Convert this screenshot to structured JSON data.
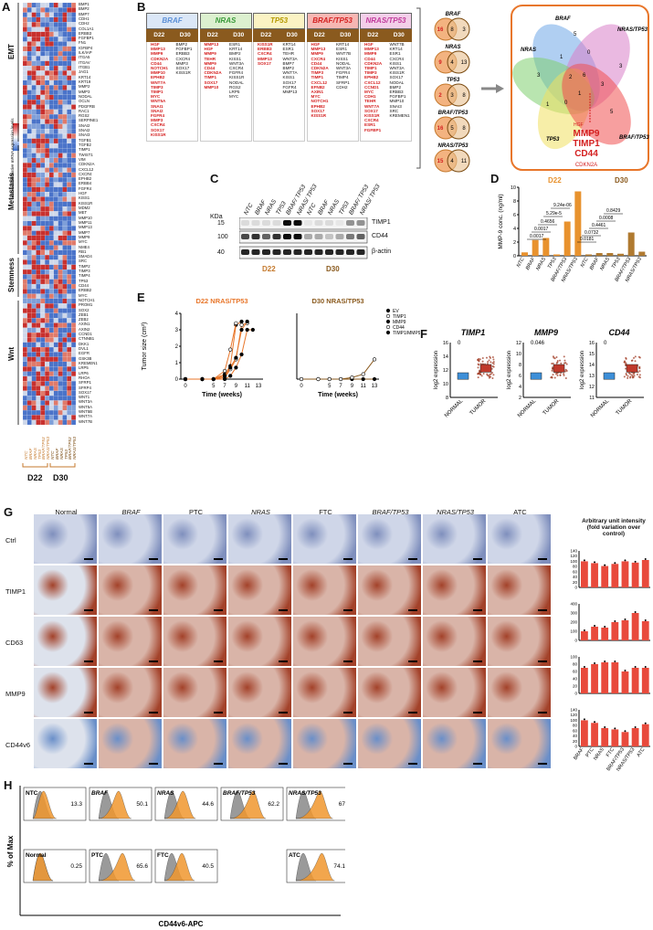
{
  "panels": {
    "A": "A",
    "B": "B",
    "C": "C",
    "D": "D",
    "E": "E",
    "F": "F",
    "G": "G",
    "H": "H"
  },
  "panelA": {
    "legend_title": "Normalized relative mRNA expression levels",
    "legend_ticks": [
      "2",
      "1",
      "0",
      "-1",
      "-2"
    ],
    "categories": [
      "EMT",
      "Metastasis",
      "Stemness",
      "Wnt"
    ],
    "genes": [
      "BMP1",
      "BMP2",
      "BMP7",
      "CDH1",
      "CDH2",
      "COL1A1",
      "ERBB3",
      "FGFBP1",
      "FN1",
      "IGFBP4",
      "ILK/IAP",
      "ITGA5",
      "ITGAV",
      "ITGB1",
      "JAG1",
      "KRT14",
      "KRT19",
      "MMP2",
      "MMP3",
      "NODAL",
      "OCLN",
      "PDGFRB",
      "RAC1",
      "RGS2",
      "SERPINE1",
      "SNAI2",
      "SNAI2",
      "SNAI3",
      "TGFB1",
      "TGFB2",
      "TIMP1",
      "TWIST1",
      "VIM",
      "CDKN2A",
      "CXCL12",
      "CXCR4",
      "EPHB2",
      "ERBB4",
      "FGFR4",
      "HGF",
      "KISS1",
      "KISS1R",
      "MDM2",
      "MET",
      "MMP10",
      "MMP11",
      "MMP13",
      "MMP7",
      "MMP9",
      "MYC",
      "NME4",
      "RB1",
      "SMAD4",
      "SRC",
      "TIMP2",
      "TIMP3",
      "TIMP4",
      "TP53",
      "CD44",
      "ERBB2",
      "MYC",
      "NOTCH1",
      "PROM1",
      "SOX2",
      "ZEB1",
      "ZEB2",
      "AXIN1",
      "AXIN2",
      "CCND1",
      "CTNNB1",
      "DKK1",
      "DVL1",
      "EGFR",
      "GSK3B",
      "KREMEN1",
      "LRP5",
      "LRP6",
      "RHOA",
      "SFRP1",
      "SFRP4",
      "SOX17",
      "WNT1",
      "WNT3A",
      "WNT5A",
      "WNT5B",
      "WNT7A",
      "WNT7B"
    ],
    "columns": [
      "NTC",
      "BRAF",
      "NRAS",
      "TP53",
      "BRAF/TP53",
      "NRAS/TP53",
      "NTC",
      "BRAF",
      "NRAS",
      "TP53",
      "BRAF/TP53",
      "NRAS/TP53"
    ],
    "groups": [
      "D22",
      "D30"
    ]
  },
  "panelB": {
    "cols": [
      {
        "name": "BRAF",
        "color": "#5b8fd6",
        "bg": "#dbe7f7",
        "d22": [
          "HGF",
          "MMP13",
          "MMP9",
          "CDKN2A",
          "CD44",
          "NOTCH1",
          "MMP10",
          "EPHB2",
          "WNT7A",
          "TIMP3",
          "TIMP1",
          "MYC",
          "WNT5A",
          "SNAI1",
          "SNAI2",
          "FGFR4",
          "MMP3",
          "CXCR4",
          "SOX17",
          "KISS1R"
        ],
        "d30": [
          "BMP2",
          "FGFBP1",
          "ERBB3",
          "CXCR4",
          "MMP3",
          "SOX17",
          "KISS1R"
        ]
      },
      {
        "name": "NRAS",
        "color": "#3a9a3a",
        "bg": "#dcf0cf",
        "d22": [
          "MMP13",
          "HGF",
          "MMP9",
          "TEHR",
          "MMP9",
          "CD44",
          "CDKN2A",
          "TIMP1",
          "SOX17",
          "MMP10"
        ],
        "d30": [
          "ESR1",
          "KRT14",
          "BMP2",
          "KISS1",
          "WNT3A",
          "CXCR4",
          "FGFR4",
          "KISS1R",
          "NODAL",
          "RGS2",
          "LRP5",
          "MYC"
        ]
      },
      {
        "name": "TP53",
        "color": "#b59a00",
        "bg": "#fbf3c4",
        "d22": [
          "KISS1R",
          "ERBB3",
          "CXCR4",
          "MMP13",
          "SOX17"
        ],
        "d30": [
          "KRT14",
          "ESR1",
          "TEHR",
          "WNT3A",
          "BMP7",
          "BMP2",
          "WNT7A",
          "KISS1",
          "SOX17",
          "FGFR4",
          "MMP13"
        ]
      },
      {
        "name": "BRAF/TP53",
        "color": "#d42020",
        "bg": "#f6b7b3",
        "d22": [
          "HGF",
          "MMP13",
          "MMP9",
          "CXCR4",
          "CD44",
          "CDKN2A",
          "TIMP3",
          "TIMP1",
          "CXCL12",
          "EFNB2",
          "AXIN1",
          "MYC",
          "NOTCH1",
          "EPHB2",
          "SOX17",
          "KISS1R"
        ],
        "d30": [
          "KRT14",
          "ESR1",
          "WNT7B",
          "KISS1",
          "NODAL",
          "WNT3A",
          "FGFR4",
          "TIMP4",
          "SFRP1",
          "CDH2"
        ]
      },
      {
        "name": "NRAS/TP53",
        "color": "#c03a9b",
        "bg": "#f3cfe9",
        "d22": [
          "HGF",
          "MMP13",
          "MMP9",
          "CD44",
          "CDKN2A",
          "TIMP1",
          "TIMP3",
          "EPHB2",
          "CXCL12",
          "CCND1",
          "MYC",
          "CDH1",
          "TEHR",
          "WNT7A",
          "SOX17",
          "KISS1R",
          "CXCR4",
          "ESR1",
          "FGFBP1"
        ],
        "d30": [
          "WNT7B",
          "KRT14",
          "ESR1",
          "CXCR4",
          "KISS1",
          "WNT3A",
          "KISS1R",
          "SOX17",
          "NODAL",
          "BMP2",
          "ERBB3",
          "FGFBP1",
          "MMP10",
          "SNAI3",
          "SRC",
          "KREMEN1"
        ]
      }
    ],
    "subheads": [
      "D22",
      "D30"
    ],
    "venn_small": [
      {
        "name": "BRAF",
        "a": "16",
        "b": "8",
        "c": "3"
      },
      {
        "name": "NRAS",
        "a": "9",
        "b": "4",
        "c": "13"
      },
      {
        "name": "TP53",
        "a": "2",
        "b": "3",
        "c": "8"
      },
      {
        "name": "BRAF/TP53",
        "a": "16",
        "b": "5",
        "c": "8"
      },
      {
        "name": "NRAS/TP53",
        "a": "15",
        "b": "4",
        "c": "11"
      }
    ],
    "venn_big": {
      "labels": [
        "BRAF",
        "NRAS/TP53",
        "NRAS",
        "TP53",
        "BRAF/TP53"
      ],
      "numbers": [
        "5",
        "3",
        "3",
        "1",
        "0",
        "2",
        "6",
        "3",
        "1",
        "0",
        "1",
        "5"
      ],
      "highlight": [
        "MMP9",
        "TIMP1",
        "CD44"
      ],
      "sub": [
        "HGF",
        "CDKN2A"
      ]
    }
  },
  "panelC": {
    "kda_label": "KDa",
    "kda": [
      "15",
      "100",
      "40"
    ],
    "lanes": [
      "NTC",
      "BRAF",
      "NRAS",
      "TP53",
      "BRAF/ TP53",
      "NRAS/ TP53",
      "NTC",
      "BRAF",
      "NRAS",
      "TP53",
      "BRAF/ TP53",
      "NRAS/ TP53"
    ],
    "bands": [
      "TIMP1",
      "CD44",
      "β-actin"
    ],
    "groups": [
      "D22",
      "D30"
    ]
  },
  "panelD": {
    "ylabel": "MMP-9 conc. (ng/ml)",
    "groups": [
      "D22",
      "D30"
    ],
    "categories": [
      "NTC",
      "BRAF",
      "NRAS",
      "TP53",
      "BRAF/TP53",
      "NRAS/TP53",
      "NTC",
      "BRAF",
      "NRAS",
      "TP53",
      "BRAF/TP53",
      "NRAS/TP53"
    ],
    "yticks": [
      "0",
      "2",
      "4",
      "6",
      "8",
      "10"
    ],
    "pvals": [
      "0.0017",
      "0.0017",
      "0.4656",
      "5.29e-5",
      "9.24e-06",
      "0.0181",
      "0.0732",
      "0.4461",
      "0.0008",
      "0.8429"
    ]
  },
  "panelE": {
    "ylabel": "Tumor size (cm³)",
    "xlabel": "Time (weeks)",
    "titles": [
      "D22 NRAS/TP53",
      "D30 NRAS/TP53"
    ],
    "xticks": [
      "0",
      "5",
      "7",
      "9",
      "11",
      "13"
    ],
    "yticks": [
      "0",
      "1",
      "2",
      "3",
      "4"
    ],
    "legend": [
      "EV",
      "TIMP1",
      "MMP9",
      "CD44",
      "TIMP1/MMP9/CD44"
    ]
  },
  "panelF": {
    "genes": [
      "TIMP1",
      "MMP9",
      "CD44"
    ],
    "ylabel": "log2 expression",
    "xcats": [
      "NORMAL",
      "TUMOR"
    ],
    "pvals": [
      "0",
      "0.046",
      "0"
    ],
    "yticks": [
      [
        "8",
        "10",
        "12",
        "14",
        "16"
      ],
      [
        "2",
        "4",
        "6",
        "8",
        "10",
        "12"
      ],
      [
        "11",
        "12",
        "13",
        "14",
        "15",
        "16"
      ]
    ]
  },
  "panelG": {
    "cols": [
      "Normal",
      "BRAF",
      "PTC",
      "NRAS",
      "FTC",
      "BRAF/TP53",
      "NRAS/TP53",
      "ATC"
    ],
    "rows": [
      "Ctrl",
      "TIMP1",
      "CD63",
      "MMP9",
      "CD44v6"
    ],
    "chart_title": "Arbitrary unit intensity (fold variation over control)",
    "xcats": [
      "BRAF",
      "PTC",
      "NRAS",
      "FTC",
      "BRAF/TP53",
      "NRAS/TP53",
      "ATC"
    ],
    "yticks": [
      [
        "0",
        "20",
        "40",
        "60",
        "80",
        "100",
        "120",
        "140"
      ],
      [
        "0",
        "100",
        "200",
        "300",
        "400"
      ],
      [
        "0",
        "20",
        "40",
        "60",
        "80",
        "100"
      ],
      [
        "0",
        "20",
        "40",
        "60",
        "80",
        "100",
        "120",
        "140"
      ]
    ]
  },
  "panelH": {
    "ylabel": "% of Max",
    "xlabel": "CD44v6-APC",
    "row1": [
      {
        "name": "NTC",
        "pct": "13.3"
      },
      {
        "name": "BRAF",
        "pct": "50.1"
      },
      {
        "name": "NRAS",
        "pct": "44.6"
      },
      {
        "name": "BRAF/TP53",
        "pct": "62.2"
      },
      {
        "name": "NRAS/TP53",
        "pct": "67"
      }
    ],
    "row2": [
      {
        "name": "Normal",
        "pct": "0.25"
      },
      {
        "name": "PTC",
        "pct": "65.6"
      },
      {
        "name": "FTC",
        "pct": "40.5"
      },
      {
        "name": "ATC",
        "pct": "74.1"
      }
    ]
  },
  "chart_data": [
    {
      "type": "bar",
      "title": "",
      "ylabel": "MMP-9 conc. (ng/ml)",
      "categories": [
        "NTC",
        "BRAF",
        "NRAS",
        "TP53",
        "BRAF/TP53",
        "NRAS/TP53",
        "NTC",
        "BRAF",
        "NRAS",
        "TP53",
        "BRAF/TP53",
        "NRAS/TP53"
      ],
      "values": [
        0.5,
        2.3,
        2.6,
        0.2,
        5.0,
        9.4,
        0.2,
        0.4,
        0.4,
        0.3,
        3.4,
        0.6
      ],
      "ylim": [
        0,
        10
      ]
    },
    {
      "type": "line",
      "title": "D22 NRAS/TP53",
      "xlabel": "Time (weeks)",
      "ylabel": "Tumor size (cm³)",
      "x": [
        0,
        3,
        5,
        7,
        8,
        9,
        10,
        11,
        12,
        13
      ],
      "series": [
        {
          "name": "EV",
          "values": [
            0,
            0,
            0,
            0.3,
            0.8,
            3.3,
            3.5,
            null,
            null,
            null
          ]
        },
        {
          "name": "TIMP1",
          "values": [
            0,
            0,
            0,
            0.1,
            0.6,
            1.2,
            3.3,
            3.4,
            null,
            null
          ]
        },
        {
          "name": "MMP9",
          "values": [
            0,
            0,
            0,
            0.2,
            0.7,
            1.3,
            3.0,
            3.5,
            null,
            null
          ]
        },
        {
          "name": "CD44",
          "values": [
            0,
            0,
            0,
            0.5,
            1.8,
            3.4,
            null,
            null,
            null,
            null
          ]
        },
        {
          "name": "TIMP1/MMP9/CD44",
          "values": [
            0,
            0,
            0,
            0,
            0.2,
            0.7,
            1.5,
            3.0,
            3.0,
            null
          ]
        }
      ],
      "ylim": [
        0,
        4
      ]
    },
    {
      "type": "line",
      "title": "D30 NRAS/TP53",
      "xlabel": "Time (weeks)",
      "ylabel": "",
      "x": [
        0,
        3,
        5,
        7,
        9,
        11,
        13
      ],
      "series": [
        {
          "name": "EV",
          "values": [
            0,
            0,
            0,
            0,
            0,
            0,
            0
          ]
        },
        {
          "name": "TIMP1/MMP9/CD44",
          "values": [
            0,
            0,
            0,
            0,
            0.1,
            0.3,
            1.2
          ]
        }
      ],
      "ylim": [
        0,
        4
      ]
    },
    {
      "type": "bar",
      "title": "TIMP1 IHC",
      "categories": [
        "BRAF",
        "PTC",
        "NRAS",
        "FTC",
        "BRAF/TP53",
        "NRAS/TP53",
        "ATC"
      ],
      "values": [
        100,
        93,
        82,
        90,
        100,
        95,
        105
      ],
      "ylim": [
        0,
        140
      ]
    },
    {
      "type": "bar",
      "title": "CD63 IHC",
      "categories": [
        "BRAF",
        "PTC",
        "NRAS",
        "FTC",
        "BRAF/TP53",
        "NRAS/TP53",
        "ATC"
      ],
      "values": [
        100,
        150,
        140,
        200,
        220,
        300,
        210
      ],
      "ylim": [
        0,
        400
      ]
    },
    {
      "type": "bar",
      "title": "MMP9 IHC",
      "categories": [
        "BRAF",
        "PTC",
        "NRAS",
        "FTC",
        "BRAF/TP53",
        "NRAS/TP53",
        "ATC"
      ],
      "values": [
        70,
        80,
        85,
        85,
        60,
        70,
        70
      ],
      "ylim": [
        0,
        100
      ]
    },
    {
      "type": "bar",
      "title": "CD44v6 IHC",
      "categories": [
        "BRAF",
        "PTC",
        "NRAS",
        "FTC",
        "BRAF/TP53",
        "NRAS/TP53",
        "ATC"
      ],
      "values": [
        100,
        90,
        70,
        65,
        55,
        70,
        85
      ],
      "ylim": [
        0,
        140
      ]
    }
  ]
}
